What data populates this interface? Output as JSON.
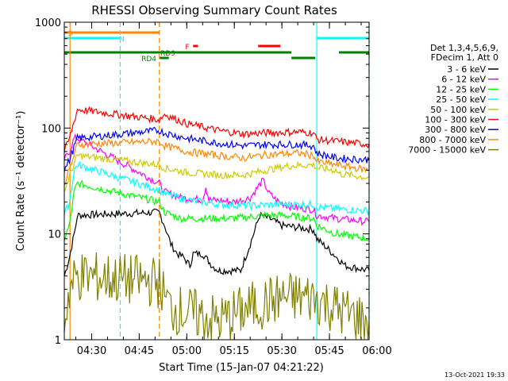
{
  "chart_data": {
    "type": "line",
    "title": "RHESSI Observing Summary Count Rates",
    "xlabel": "Start Time (15-Jan-07 04:21:22)",
    "ylabel": "Count Rate (s⁻¹ detector⁻¹)",
    "y_scale": "log",
    "ylim": [
      1,
      1000
    ],
    "xlim": [
      "04:21:22",
      "05:57:30"
    ],
    "x_ticks": [
      "04:30",
      "04:45",
      "05:00",
      "05:15",
      "05:30",
      "05:45",
      "06:00"
    ],
    "y_ticks": [
      "1",
      "10",
      "100",
      "1000"
    ],
    "legend_header": [
      "Det 1,3,4,5,6,9,",
      "FDecim 1, Att 0"
    ],
    "legend_position": "right",
    "timestamp": "13-Oct-2021 19:33",
    "flag_labels": [
      "S",
      "N",
      "F",
      "RD9",
      "RD4"
    ],
    "series": [
      {
        "name": "3 - 6 keV",
        "color": "#000000",
        "points": [
          [
            "04:21:22",
            4
          ],
          [
            "04:23:00",
            6
          ],
          [
            "04:24:30",
            10
          ],
          [
            "04:25:00",
            12
          ],
          [
            "04:25:30",
            15
          ],
          [
            "04:51:20",
            16
          ],
          [
            "04:53:00",
            12
          ],
          [
            "04:55:00",
            8
          ],
          [
            "04:57:00",
            6.5
          ],
          [
            "04:59:00",
            6
          ],
          [
            "05:01:00",
            5
          ],
          [
            "05:02:00",
            6.5
          ],
          [
            "05:05:00",
            6.5
          ],
          [
            "05:08:00",
            5
          ],
          [
            "05:10:00",
            4.5
          ],
          [
            "05:14:00",
            4.5
          ],
          [
            "05:17:00",
            4.5
          ],
          [
            "05:20:00",
            8
          ],
          [
            "05:23:00",
            15
          ],
          [
            "05:26:00",
            14
          ],
          [
            "05:30:00",
            12
          ],
          [
            "05:35:00",
            11.5
          ],
          [
            "05:40:00",
            11
          ],
          [
            "05:41:00",
            9
          ],
          [
            "05:45:00",
            7
          ],
          [
            "05:50:00",
            5
          ],
          [
            "05:57:30",
            4.5
          ]
        ]
      },
      {
        "name": "6 - 12 keV",
        "color": "#ff00ff",
        "points": [
          [
            "04:21:22",
            50
          ],
          [
            "04:23:00",
            60
          ],
          [
            "04:24:30",
            80
          ],
          [
            "04:25:30",
            80
          ],
          [
            "04:51:20",
            30
          ],
          [
            "04:53:00",
            25
          ],
          [
            "04:58:00",
            22
          ],
          [
            "05:05:00",
            21
          ],
          [
            "05:06:00",
            28
          ],
          [
            "05:07:00",
            21
          ],
          [
            "05:15:00",
            20
          ],
          [
            "05:20:00",
            22
          ],
          [
            "05:24:00",
            32
          ],
          [
            "05:26:00",
            24
          ],
          [
            "05:29:00",
            20
          ],
          [
            "05:33:00",
            18
          ],
          [
            "05:40:00",
            17
          ],
          [
            "05:41:00",
            15
          ],
          [
            "05:47:00",
            14
          ],
          [
            "05:57:30",
            13
          ]
        ]
      },
      {
        "name": "12 - 25 keV",
        "color": "#00ff00",
        "points": [
          [
            "04:21:22",
            9
          ],
          [
            "04:23:00",
            12
          ],
          [
            "04:24:30",
            25
          ],
          [
            "04:25:30",
            30
          ],
          [
            "04:51:20",
            20
          ],
          [
            "04:53:00",
            16
          ],
          [
            "04:58:00",
            14
          ],
          [
            "05:05:00",
            14
          ],
          [
            "05:15:00",
            14
          ],
          [
            "05:25:00",
            15
          ],
          [
            "05:30:00",
            15
          ],
          [
            "05:40:00",
            14
          ],
          [
            "05:41:00",
            12
          ],
          [
            "05:47:00",
            10
          ],
          [
            "05:57:30",
            9
          ]
        ]
      },
      {
        "name": "25 - 50 keV",
        "color": "#00ffff",
        "points": [
          [
            "04:21:22",
            15
          ],
          [
            "04:23:00",
            20
          ],
          [
            "04:24:30",
            40
          ],
          [
            "04:25:30",
            45
          ],
          [
            "04:51:20",
            26
          ],
          [
            "04:53:00",
            24
          ],
          [
            "05:00:00",
            21
          ],
          [
            "05:10:00",
            19
          ],
          [
            "05:20:00",
            18.5
          ],
          [
            "05:30:00",
            19
          ],
          [
            "05:40:00",
            19
          ],
          [
            "05:41:00",
            18
          ],
          [
            "05:50:00",
            17
          ],
          [
            "05:57:30",
            16.5
          ]
        ]
      },
      {
        "name": "50 - 100 keV",
        "color": "#cccc00",
        "points": [
          [
            "04:21:22",
            25
          ],
          [
            "04:23:00",
            35
          ],
          [
            "04:25:30",
            55
          ],
          [
            "04:51:20",
            45
          ],
          [
            "04:53:00",
            42
          ],
          [
            "05:00:00",
            38
          ],
          [
            "05:10:00",
            36
          ],
          [
            "05:18:00",
            36
          ],
          [
            "05:25:00",
            40
          ],
          [
            "05:32:00",
            44
          ],
          [
            "05:40:00",
            45
          ],
          [
            "05:41:00",
            42
          ],
          [
            "05:47:00",
            40
          ],
          [
            "05:48:00",
            37
          ],
          [
            "05:57:30",
            34
          ]
        ]
      },
      {
        "name": "100 - 300 keV",
        "color": "#ff0000",
        "points": [
          [
            "04:21:22",
            60
          ],
          [
            "04:23:00",
            80
          ],
          [
            "04:25:30",
            150
          ],
          [
            "04:51:20",
            120
          ],
          [
            "04:53:00",
            135
          ],
          [
            "05:00:00",
            110
          ],
          [
            "05:10:00",
            95
          ],
          [
            "05:18:00",
            88
          ],
          [
            "05:25:00",
            90
          ],
          [
            "05:35:00",
            92
          ],
          [
            "05:40:00",
            90
          ],
          [
            "05:41:00",
            78
          ],
          [
            "05:47:00",
            75
          ],
          [
            "05:57:30",
            70
          ]
        ]
      },
      {
        "name": "300 - 800 keV",
        "color": "#0000ff",
        "points": [
          [
            "04:21:22",
            40
          ],
          [
            "04:23:00",
            50
          ],
          [
            "04:25:30",
            80
          ],
          [
            "04:51:20",
            95
          ],
          [
            "04:53:00",
            90
          ],
          [
            "05:00:00",
            80
          ],
          [
            "05:10:00",
            72
          ],
          [
            "05:18:00",
            68
          ],
          [
            "05:25:00",
            70
          ],
          [
            "05:35:00",
            70
          ],
          [
            "05:40:00",
            68
          ],
          [
            "05:41:00",
            58
          ],
          [
            "05:47:00",
            52
          ],
          [
            "05:57:30",
            50
          ]
        ]
      },
      {
        "name": "800 - 7000 keV",
        "color": "#ff8800",
        "points": [
          [
            "04:21:22",
            30
          ],
          [
            "04:23:00",
            40
          ],
          [
            "04:25:30",
            70
          ],
          [
            "04:51:20",
            75
          ],
          [
            "04:53:00",
            68
          ],
          [
            "05:00:00",
            60
          ],
          [
            "05:10:00",
            55
          ],
          [
            "05:18:00",
            52
          ],
          [
            "05:25:00",
            56
          ],
          [
            "05:35:00",
            58
          ],
          [
            "05:40:00",
            55
          ],
          [
            "05:41:00",
            48
          ],
          [
            "05:47:00",
            45
          ],
          [
            "05:57:30",
            40
          ]
        ]
      },
      {
        "name": "7000 - 15000 keV",
        "color": "#808000",
        "points": [
          [
            "04:21:22",
            1.5
          ],
          [
            "04:23:00",
            3
          ],
          [
            "04:25:30",
            4
          ],
          [
            "04:51:20",
            3.5
          ],
          [
            "04:53:00",
            2.5
          ],
          [
            "04:55:00",
            2
          ],
          [
            "05:10:00",
            1.5
          ],
          [
            "05:20:00",
            2
          ],
          [
            "05:30:00",
            2.5
          ],
          [
            "05:40:00",
            2.5
          ],
          [
            "05:50:00",
            1.8
          ],
          [
            "05:57:30",
            1.5
          ]
        ]
      }
    ],
    "flags": [
      {
        "label": "S",
        "color": "#ff8800",
        "row": 1,
        "start": "04:21:22",
        "end": "04:51:20",
        "label_at": "04:22:30",
        "label_offset_dy": 0
      },
      {
        "label": "N",
        "color": "#00ffff",
        "row": 2,
        "start": "04:21:22",
        "end": "04:39:00",
        "label_at": "04:38:40",
        "label_offset_dy": 0
      },
      {
        "label": "",
        "color": "#00ffff",
        "row": 2,
        "start": "05:41:00",
        "end": "05:57:30"
      },
      {
        "label": "F",
        "color": "#ff0000",
        "row": 3,
        "start": "05:02:00",
        "end": "05:03:30",
        "label_at": "04:59:30",
        "label_offset_dy": 0
      },
      {
        "label": "",
        "color": "#ff0000",
        "row": 3,
        "start": "05:22:30",
        "end": "05:29:30"
      },
      {
        "label": "RD9",
        "color": "#008000",
        "row": 4,
        "start": "04:21:22",
        "end": "05:33:00",
        "label_at": "04:51:40",
        "label_offset_dy": 0
      },
      {
        "label": "",
        "color": "#008000",
        "row": 4,
        "start": "05:48:00",
        "end": "05:57:30"
      },
      {
        "label": "RD4",
        "color": "#008000",
        "row": 5,
        "start": "04:51:20",
        "end": "04:54:20",
        "label_at": "04:45:40",
        "label_offset_dy": 0
      },
      {
        "label": "",
        "color": "#008000",
        "row": 5,
        "start": "05:33:00",
        "end": "05:40:30"
      }
    ],
    "vlines": [
      {
        "time": "04:23:10",
        "color": "#ff8800",
        "style": "solid"
      },
      {
        "time": "04:39:00",
        "color": "#00ffff",
        "style": "dashed"
      },
      {
        "time": "04:51:20",
        "color": "#ff8800",
        "style": "dashed"
      },
      {
        "time": "05:41:00",
        "color": "#00ffff",
        "style": "solid"
      },
      {
        "time": "05:57:30",
        "color": "#00ffff",
        "style": "dashed"
      }
    ]
  }
}
